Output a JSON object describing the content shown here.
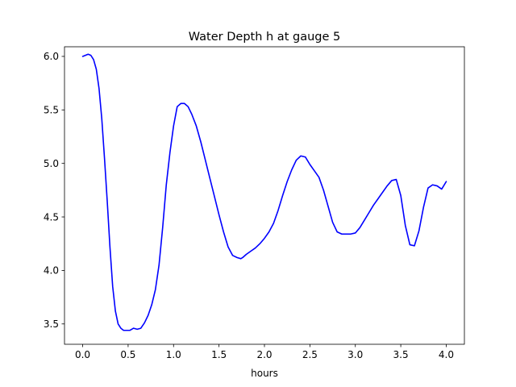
{
  "chart_data": {
    "type": "line",
    "title": "Water Depth h at gauge 5",
    "xlabel": "hours",
    "ylabel": "",
    "xlim": [
      -0.2,
      4.2
    ],
    "ylim": [
      3.31,
      6.09
    ],
    "xticks": [
      0.0,
      0.5,
      1.0,
      1.5,
      2.0,
      2.5,
      3.0,
      3.5,
      4.0
    ],
    "xtick_labels": [
      "0.0",
      "0.5",
      "1.0",
      "1.5",
      "2.0",
      "2.5",
      "3.0",
      "3.5",
      "4.0"
    ],
    "yticks": [
      3.5,
      4.0,
      4.5,
      5.0,
      5.5,
      6.0
    ],
    "ytick_labels": [
      "3.5",
      "4.0",
      "4.5",
      "5.0",
      "5.5",
      "6.0"
    ],
    "grid": false,
    "legend": false,
    "series": [
      {
        "color": "#0000ff",
        "x": [
          0.0,
          0.03,
          0.06,
          0.09,
          0.12,
          0.15,
          0.18,
          0.21,
          0.24,
          0.27,
          0.3,
          0.33,
          0.36,
          0.39,
          0.42,
          0.45,
          0.48,
          0.52,
          0.56,
          0.6,
          0.64,
          0.68,
          0.72,
          0.76,
          0.8,
          0.84,
          0.88,
          0.92,
          0.96,
          1.0,
          1.04,
          1.08,
          1.12,
          1.16,
          1.2,
          1.25,
          1.3,
          1.35,
          1.4,
          1.45,
          1.5,
          1.55,
          1.6,
          1.65,
          1.7,
          1.74,
          1.76,
          1.8,
          1.85,
          1.9,
          1.95,
          2.0,
          2.05,
          2.1,
          2.15,
          2.2,
          2.25,
          2.3,
          2.35,
          2.4,
          2.45,
          2.5,
          2.55,
          2.6,
          2.65,
          2.7,
          2.75,
          2.8,
          2.85,
          2.9,
          2.95,
          3.0,
          3.05,
          3.1,
          3.15,
          3.2,
          3.25,
          3.3,
          3.35,
          3.4,
          3.45,
          3.5,
          3.55,
          3.6,
          3.65,
          3.7,
          3.75,
          3.8,
          3.85,
          3.9,
          3.95,
          4.0
        ],
        "y": [
          6.0,
          6.01,
          6.02,
          6.01,
          5.97,
          5.88,
          5.7,
          5.42,
          5.05,
          4.65,
          4.22,
          3.85,
          3.62,
          3.5,
          3.46,
          3.44,
          3.44,
          3.44,
          3.46,
          3.45,
          3.46,
          3.51,
          3.58,
          3.68,
          3.82,
          4.05,
          4.4,
          4.8,
          5.1,
          5.35,
          5.53,
          5.56,
          5.56,
          5.53,
          5.46,
          5.35,
          5.2,
          5.03,
          4.86,
          4.69,
          4.52,
          4.36,
          4.22,
          4.14,
          4.12,
          4.11,
          4.12,
          4.15,
          4.18,
          4.21,
          4.25,
          4.3,
          4.36,
          4.44,
          4.56,
          4.7,
          4.83,
          4.94,
          5.03,
          5.07,
          5.06,
          4.99,
          4.93,
          4.87,
          4.75,
          4.6,
          4.45,
          4.36,
          4.34,
          4.34,
          4.34,
          4.35,
          4.4,
          4.47,
          4.54,
          4.61,
          4.67,
          4.73,
          4.79,
          4.84,
          4.85,
          4.7,
          4.42,
          4.24,
          4.23,
          4.37,
          4.59,
          4.77,
          4.8,
          4.79,
          4.76,
          4.83
        ]
      }
    ]
  }
}
